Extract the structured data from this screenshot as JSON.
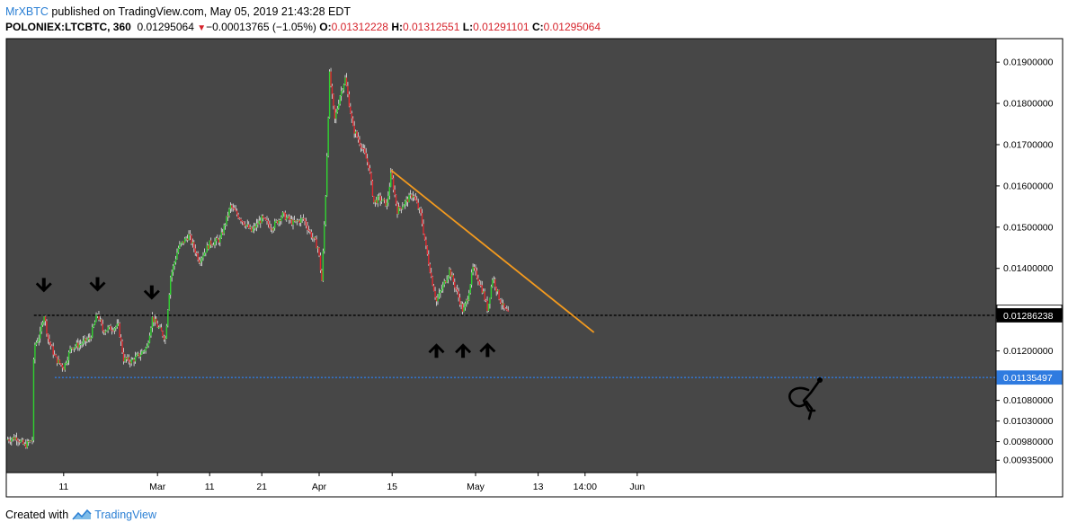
{
  "header": {
    "author": "MrXBTC",
    "published_text": " published on TradingView.com, May 05, 2019 21:43:28 EDT",
    "symbol": "POLONIEX:LTCBTC, 360",
    "last_price": "0.01295064",
    "change_arrow": "▼",
    "change": "−0.00013765 (−1.05%)",
    "open_label": "O:",
    "open": "0.01312228",
    "high_label": "H:",
    "high": "0.01312551",
    "low_label": "L:",
    "low": "0.01291101",
    "close_label": "C:",
    "close": "0.01295064"
  },
  "footer": {
    "created_with": "Created with",
    "brand": "TradingView"
  },
  "colors": {
    "background": "#474747",
    "up_candle": "#2fd12f",
    "down_candle": "#e0282e",
    "trendline": "#f39a1e",
    "support_line": "#2f7be0",
    "resistance_line": "#000000",
    "arrow": "#000000"
  },
  "chart_data": {
    "type": "candlestick",
    "y_scale": {
      "min": 0.00905,
      "max": 0.01957
    },
    "x_ticks": [
      {
        "label": "11",
        "day": 11
      },
      {
        "label": "Mar",
        "day": 29
      },
      {
        "label": "11",
        "day": 39
      },
      {
        "label": "21",
        "day": 49
      },
      {
        "label": "Apr",
        "day": 60
      },
      {
        "label": "15",
        "day": 74
      },
      {
        "label": "May",
        "day": 90
      },
      {
        "label": "13",
        "day": 102
      },
      {
        "label": "14:00",
        "day": 111
      },
      {
        "label": "Jun",
        "day": 121
      }
    ],
    "y_ticks": [
      "0.01900000",
      "0.01800000",
      "0.01700000",
      "0.01600000",
      "0.01500000",
      "0.01400000",
      "0.01200000",
      "0.01080000",
      "0.01030000",
      "0.00980000",
      "0.00935000"
    ],
    "price_labels": [
      {
        "text": "0.01295064",
        "value": 0.01295064,
        "style": "white"
      },
      {
        "text": "0.01286238",
        "value": 0.01286238,
        "style": "black"
      },
      {
        "text": "0.01135497",
        "value": 0.01135497,
        "style": "blue"
      }
    ],
    "horizontal_lines": [
      {
        "name": "resistance",
        "value": 0.01286238,
        "from_day": 5.3,
        "style": "black-dashed"
      },
      {
        "name": "support",
        "value": 0.01135497,
        "from_day": 9.3,
        "style": "blue-dotted"
      }
    ],
    "trendline": {
      "from": {
        "day": 73.8,
        "value": 0.01638
      },
      "to": {
        "day": 112.7,
        "value": 0.01245
      }
    },
    "arrows": [
      {
        "dir": "down",
        "day": 7.2,
        "value": 0.01355
      },
      {
        "dir": "down",
        "day": 17.5,
        "value": 0.01357
      },
      {
        "dir": "down",
        "day": 27.9,
        "value": 0.01337
      },
      {
        "dir": "up",
        "day": 82.5,
        "value": 0.01205
      },
      {
        "dir": "up",
        "day": 87.6,
        "value": 0.01205
      },
      {
        "dir": "up",
        "day": 92.3,
        "value": 0.01207
      }
    ],
    "anchors": [
      [
        0,
        0.00985
      ],
      [
        2,
        0.0099
      ],
      [
        3.5,
        0.0097
      ],
      [
        5,
        0.00985
      ],
      [
        5.3,
        0.0121
      ],
      [
        6.5,
        0.0124
      ],
      [
        7.2,
        0.01292
      ],
      [
        8,
        0.0123
      ],
      [
        9.5,
        0.0118
      ],
      [
        11,
        0.0116
      ],
      [
        12.5,
        0.0121
      ],
      [
        14,
        0.01215
      ],
      [
        16,
        0.0123
      ],
      [
        17.5,
        0.0129
      ],
      [
        18.5,
        0.0125
      ],
      [
        20,
        0.01255
      ],
      [
        21.5,
        0.0126
      ],
      [
        22.5,
        0.0118
      ],
      [
        24,
        0.01175
      ],
      [
        25.5,
        0.0119
      ],
      [
        27,
        0.0121
      ],
      [
        28,
        0.0128
      ],
      [
        29.5,
        0.0125
      ],
      [
        30.5,
        0.0123
      ],
      [
        31.5,
        0.0138
      ],
      [
        33,
        0.0145
      ],
      [
        35,
        0.0148
      ],
      [
        37,
        0.0142
      ],
      [
        39,
        0.0146
      ],
      [
        41,
        0.0147
      ],
      [
        43,
        0.0155
      ],
      [
        45,
        0.0152
      ],
      [
        47,
        0.0149
      ],
      [
        49,
        0.0152
      ],
      [
        51,
        0.015
      ],
      [
        53,
        0.0153
      ],
      [
        55,
        0.0151
      ],
      [
        57,
        0.0152
      ],
      [
        58.5,
        0.0148
      ],
      [
        59.8,
        0.0145
      ],
      [
        60.5,
        0.0137
      ],
      [
        61.2,
        0.0156
      ],
      [
        62,
        0.0187
      ],
      [
        63,
        0.0176
      ],
      [
        64,
        0.0182
      ],
      [
        65,
        0.0186
      ],
      [
        66.5,
        0.0174
      ],
      [
        68,
        0.017
      ],
      [
        69.5,
        0.0165
      ],
      [
        70.5,
        0.0156
      ],
      [
        71.5,
        0.0157
      ],
      [
        73,
        0.01555
      ],
      [
        73.8,
        0.0163
      ],
      [
        75,
        0.0154
      ],
      [
        76.5,
        0.0156
      ],
      [
        78,
        0.0158
      ],
      [
        79.5,
        0.0153
      ],
      [
        80.5,
        0.0145
      ],
      [
        81.5,
        0.0138
      ],
      [
        82.5,
        0.0132
      ],
      [
        83.5,
        0.0135
      ],
      [
        85,
        0.01395
      ],
      [
        86.5,
        0.0134
      ],
      [
        87.6,
        0.01295
      ],
      [
        88.5,
        0.0133
      ],
      [
        89.5,
        0.014
      ],
      [
        90.5,
        0.01375
      ],
      [
        91.5,
        0.0134
      ],
      [
        92.3,
        0.013
      ],
      [
        93.3,
        0.0138
      ],
      [
        94.5,
        0.0133
      ],
      [
        95.5,
        0.013
      ],
      [
        96.3,
        0.0129
      ]
    ]
  }
}
